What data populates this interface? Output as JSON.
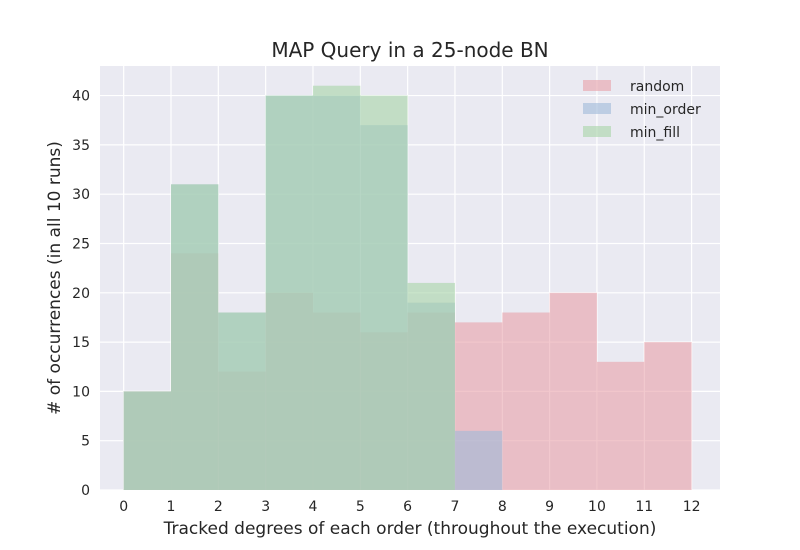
{
  "chart_data": {
    "type": "bar",
    "title": "MAP Query in a 25-node BN",
    "xlabel": "Tracked degrees of each order (throughout the execution)",
    "ylabel": "# of occurrences (in all 10 runs)",
    "xlim": [
      -0.5,
      12.6
    ],
    "ylim": [
      0,
      43
    ],
    "xticks": [
      0,
      1,
      2,
      3,
      4,
      5,
      6,
      7,
      8,
      9,
      10,
      11,
      12
    ],
    "yticks": [
      0,
      5,
      10,
      15,
      20,
      25,
      30,
      35,
      40
    ],
    "bin_edges": [
      0,
      1,
      2,
      3,
      4,
      5,
      6,
      7,
      8,
      9,
      10,
      11,
      12
    ],
    "grid": true,
    "legend_position": "top-right",
    "series": [
      {
        "name": "random",
        "color": "#e8a0a8",
        "opacity": 0.6,
        "values": [
          10,
          24,
          12,
          20,
          18,
          16,
          18,
          17,
          18,
          20,
          13,
          15
        ]
      },
      {
        "name": "min_order",
        "color": "#9fb9d9",
        "opacity": 0.6,
        "values": [
          10,
          31,
          18,
          40,
          40,
          37,
          19,
          6,
          0,
          0,
          0,
          0
        ]
      },
      {
        "name": "min_fill",
        "color": "#a6d4a6",
        "opacity": 0.6,
        "values": [
          10,
          31,
          18,
          40,
          41,
          40,
          21,
          0,
          0,
          0,
          0,
          0
        ]
      }
    ]
  }
}
